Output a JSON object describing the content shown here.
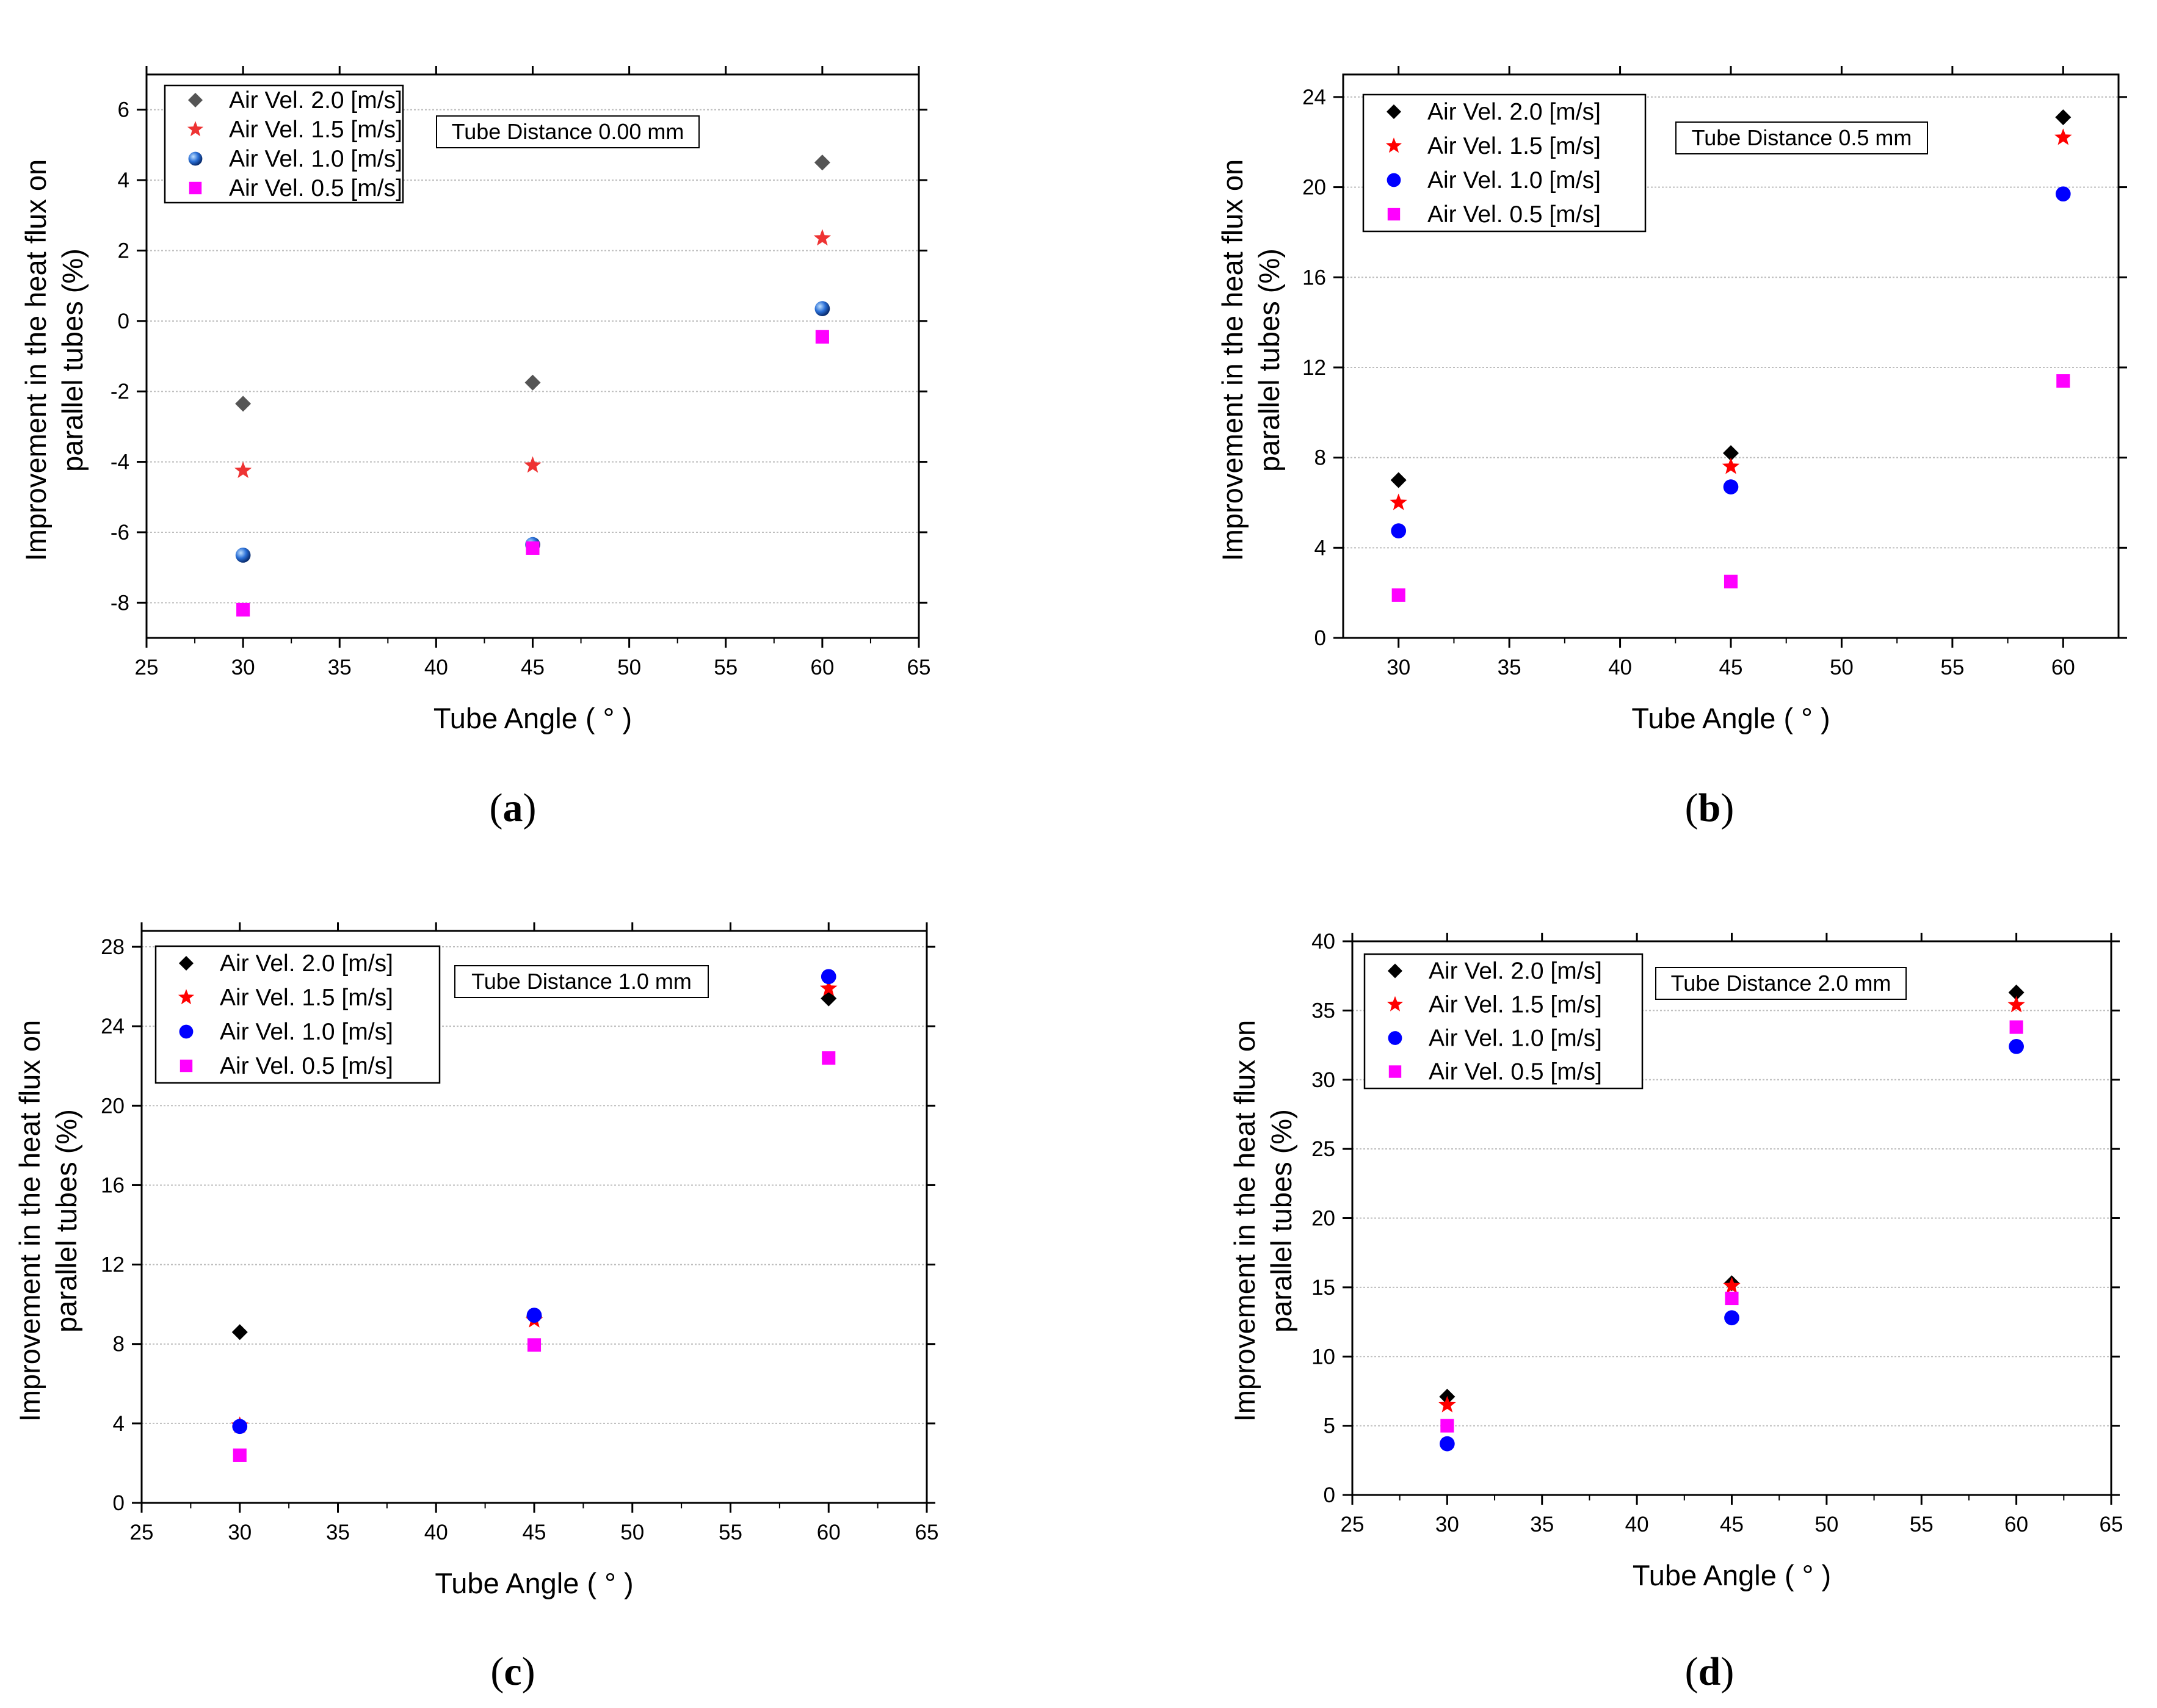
{
  "chart_data": [
    {
      "type": "scatter",
      "panel_label": "(a)",
      "panel_letter": "a",
      "annotation": "Tube Distance 0.00 mm",
      "xlabel": "Tube Angle ( ° )",
      "ylabel_line1": "Improvement in the heat flux on",
      "ylabel_line2": "parallel tubes (%)",
      "xlim": [
        25,
        65
      ],
      "ylim": [
        -9,
        7
      ],
      "xticks": [
        25,
        30,
        35,
        40,
        45,
        50,
        55,
        60,
        65
      ],
      "yticks": [
        -8,
        -6,
        -4,
        -2,
        0,
        2,
        4,
        6
      ],
      "grid": true,
      "legend_position": "top-left",
      "x": [
        30,
        45,
        60
      ],
      "series": [
        {
          "name": "Air Vel. 2.0 [m/s]",
          "marker": "diamond",
          "color": "#555555",
          "values": [
            -2.35,
            -1.75,
            4.5
          ]
        },
        {
          "name": "Air Vel. 1.5 [m/s]",
          "marker": "star",
          "color": "#ee3333",
          "values": [
            -4.25,
            -4.1,
            2.35
          ]
        },
        {
          "name": "Air Vel. 1.0 [m/s]",
          "marker": "sphere",
          "color": "#2266dd",
          "values": [
            -6.65,
            -6.35,
            0.35
          ]
        },
        {
          "name": "Air Vel. 0.5 [m/s]",
          "marker": "square",
          "color": "#ff00ff",
          "values": [
            -8.2,
            -6.45,
            -0.45
          ]
        }
      ]
    },
    {
      "type": "scatter",
      "panel_label": "(b)",
      "panel_letter": "b",
      "annotation": "Tube Distance 0.5 mm",
      "xlabel": "Tube Angle ( ° )",
      "ylabel_line1": "Improvement in the heat flux on",
      "ylabel_line2": "parallel tubes (%)",
      "xlim": [
        27.5,
        62.5
      ],
      "ylim": [
        0,
        25
      ],
      "xticks": [
        30,
        35,
        40,
        45,
        50,
        55,
        60
      ],
      "yticks": [
        0,
        4,
        8,
        12,
        16,
        20,
        24
      ],
      "grid": true,
      "legend_position": "top-left",
      "x": [
        30,
        45,
        60
      ],
      "series": [
        {
          "name": "Air Vel. 2.0 [m/s]",
          "marker": "diamond",
          "color": "#000000",
          "values": [
            7.0,
            8.2,
            23.1
          ]
        },
        {
          "name": "Air Vel. 1.5 [m/s]",
          "marker": "star",
          "color": "#ff0000",
          "values": [
            6.0,
            7.6,
            22.2
          ]
        },
        {
          "name": "Air Vel. 1.0 [m/s]",
          "marker": "circle",
          "color": "#0000ff",
          "values": [
            4.75,
            6.7,
            19.7
          ]
        },
        {
          "name": "Air Vel. 0.5 [m/s]",
          "marker": "square",
          "color": "#ff00ff",
          "values": [
            1.9,
            2.5,
            11.4
          ]
        }
      ]
    },
    {
      "type": "scatter",
      "panel_label": "(c)",
      "panel_letter": "c",
      "annotation": "Tube Distance 1.0 mm",
      "xlabel": "Tube Angle ( ° )",
      "ylabel_line1": "Improvement in the heat flux on",
      "ylabel_line2": "parallel tubes (%)",
      "xlim": [
        25,
        65
      ],
      "ylim": [
        0,
        28.8
      ],
      "xticks": [
        25,
        30,
        35,
        40,
        45,
        50,
        55,
        60,
        65
      ],
      "yticks": [
        0,
        4,
        8,
        12,
        16,
        20,
        24,
        28
      ],
      "grid": true,
      "legend_position": "top-left",
      "x": [
        30,
        45,
        60
      ],
      "series": [
        {
          "name": "Air Vel. 2.0 [m/s]",
          "marker": "diamond",
          "color": "#000000",
          "values": [
            8.6,
            9.4,
            25.4
          ]
        },
        {
          "name": "Air Vel. 1.5 [m/s]",
          "marker": "star",
          "color": "#ff0000",
          "values": [
            3.9,
            9.2,
            25.9
          ]
        },
        {
          "name": "Air Vel. 1.0 [m/s]",
          "marker": "circle",
          "color": "#0000ff",
          "values": [
            3.85,
            9.45,
            26.5
          ]
        },
        {
          "name": "Air Vel. 0.5 [m/s]",
          "marker": "square",
          "color": "#ff00ff",
          "values": [
            2.4,
            7.95,
            22.4
          ]
        }
      ]
    },
    {
      "type": "scatter",
      "panel_label": "(d)",
      "panel_letter": "d",
      "annotation": "Tube Distance 2.0 mm",
      "xlabel": "Tube Angle ( ° )",
      "ylabel_line1": "Improvement in the heat flux on",
      "ylabel_line2": "parallel tubes (%)",
      "xlim": [
        25,
        65
      ],
      "ylim": [
        0,
        40
      ],
      "xticks": [
        25,
        30,
        35,
        40,
        45,
        50,
        55,
        60,
        65
      ],
      "yticks": [
        0,
        5,
        10,
        15,
        20,
        25,
        30,
        35,
        40
      ],
      "grid": true,
      "legend_position": "top-left",
      "x": [
        30,
        45,
        60
      ],
      "series": [
        {
          "name": "Air Vel. 2.0 [m/s]",
          "marker": "diamond",
          "color": "#000000",
          "values": [
            7.1,
            15.3,
            36.3
          ]
        },
        {
          "name": "Air Vel. 1.5 [m/s]",
          "marker": "star",
          "color": "#ff0000",
          "values": [
            6.5,
            15.1,
            35.4
          ]
        },
        {
          "name": "Air Vel. 1.0 [m/s]",
          "marker": "circle",
          "color": "#0000ff",
          "values": [
            3.7,
            12.8,
            32.4
          ]
        },
        {
          "name": "Air Vel. 0.5 [m/s]",
          "marker": "square",
          "color": "#ff00ff",
          "values": [
            5.0,
            14.2,
            33.8
          ]
        }
      ]
    }
  ]
}
